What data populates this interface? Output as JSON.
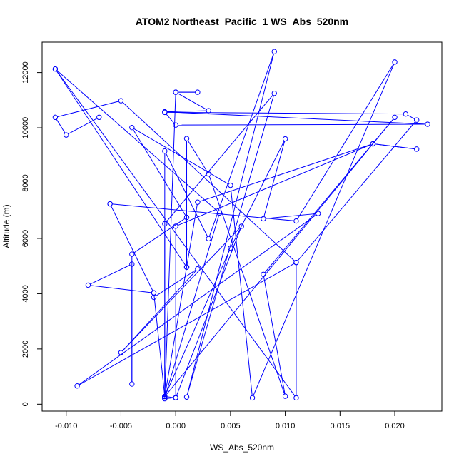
{
  "chart_data": {
    "type": "scatter",
    "title": "ATOM2 Northeast_Pacific_1 WS_Abs_520nm",
    "xlabel": "WS_Abs_520nm",
    "ylabel": "Altitude (m)",
    "xlim": [
      -0.0122,
      0.0243
    ],
    "ylim": [
      -250,
      13100
    ],
    "x_ticks": [
      -0.01,
      -0.005,
      0.0,
      0.005,
      0.01,
      0.015,
      0.02
    ],
    "x_tick_labels": [
      "-0.010",
      "-0.005",
      "0.000",
      "0.005",
      "0.010",
      "0.015",
      "0.020"
    ],
    "y_ticks": [
      0,
      2000,
      4000,
      6000,
      8000,
      10000,
      12000
    ],
    "y_tick_labels": [
      "0",
      "2000",
      "4000",
      "6000",
      "8000",
      "10000",
      "12000"
    ],
    "grid": false,
    "series": [
      {
        "color": "#0000ff",
        "marker": "open-circle",
        "connected": true,
        "points": [
          [
            -0.011,
            12130
          ],
          [
            0.004,
            6920
          ],
          [
            -0.001,
            230
          ],
          [
            -0.001,
            9160
          ],
          [
            0.003,
            5990
          ],
          [
            0.009,
            12760
          ],
          [
            0.001,
            260
          ],
          [
            0.009,
            11250
          ],
          [
            -0.001,
            6530
          ],
          [
            -0.001,
            230
          ],
          [
            0.0,
            11290
          ],
          [
            0.002,
            11290
          ],
          [
            0.0,
            11290
          ],
          [
            0.003,
            10620
          ],
          [
            -0.001,
            10580
          ],
          [
            0.023,
            10130
          ],
          [
            0.0,
            10100
          ],
          [
            -0.001,
            10560
          ],
          [
            0.021,
            10500
          ],
          [
            0.022,
            10280
          ],
          [
            0.011,
            5130
          ],
          [
            -0.009,
            660
          ],
          [
            0.013,
            6900
          ],
          [
            0.008,
            6710
          ],
          [
            0.01,
            9600
          ],
          [
            0.005,
            5650
          ],
          [
            -0.001,
            280
          ],
          [
            0.002,
            7310
          ],
          [
            0.018,
            9420
          ],
          [
            0.022,
            9230
          ],
          [
            0.018,
            9420
          ],
          [
            0.0,
            6440
          ],
          [
            0.0,
            240
          ],
          [
            -0.001,
            200
          ],
          [
            -0.001,
            280
          ],
          [
            0.0,
            230
          ],
          [
            0.006,
            6440
          ],
          [
            -0.005,
            1870
          ],
          [
            0.002,
            4900
          ],
          [
            -0.002,
            3870
          ],
          [
            -0.002,
            4030
          ],
          [
            -0.006,
            7250
          ],
          [
            -0.006,
            7250
          ],
          [
            0.011,
            6630
          ],
          [
            0.02,
            12380
          ],
          [
            0.007,
            230
          ],
          [
            0.005,
            7920
          ],
          [
            -0.004,
            10010
          ],
          [
            0.001,
            6760
          ],
          [
            -0.004,
            5430
          ],
          [
            -0.004,
            730
          ],
          [
            -0.004,
            5070
          ],
          [
            -0.008,
            4310
          ],
          [
            -0.002,
            4030
          ],
          [
            -0.001,
            280
          ],
          [
            0.02,
            10380
          ],
          [
            0.008,
            4700
          ],
          [
            0.01,
            290
          ],
          [
            0.003,
            8330
          ],
          [
            0.001,
            9610
          ],
          [
            0.001,
            4960
          ],
          [
            0.001,
            4960
          ],
          [
            -0.011,
            12130
          ],
          [
            0.011,
            230
          ],
          [
            0.011,
            5130
          ],
          [
            -0.005,
            10980
          ],
          [
            -0.011,
            10380
          ],
          [
            -0.01,
            9740
          ],
          [
            -0.007,
            10380
          ]
        ]
      }
    ]
  }
}
